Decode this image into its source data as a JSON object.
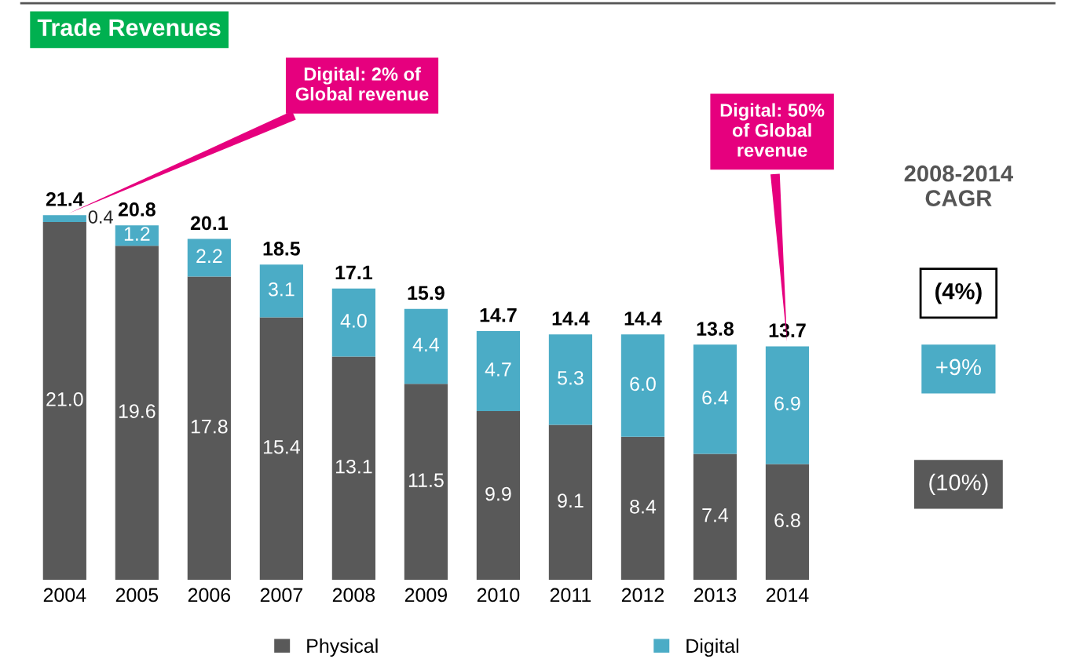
{
  "chart_data": {
    "type": "bar",
    "title": "Trade Revenues",
    "stacked": true,
    "legend": "bottom",
    "grid": false,
    "categories": [
      "2004",
      "2005",
      "2006",
      "2007",
      "2008",
      "2009",
      "2010",
      "2011",
      "2012",
      "2013",
      "2014"
    ],
    "series": [
      {
        "name": "Physical",
        "color": "#595959",
        "values": [
          21.0,
          19.6,
          17.8,
          15.4,
          13.1,
          11.5,
          9.9,
          9.1,
          8.4,
          7.4,
          6.8
        ],
        "value_labels": [
          "21.0",
          "19.6",
          "17.8",
          "15.4",
          "13.1",
          "11.5",
          "9.9",
          "9.1",
          "8.4",
          "7.4",
          "6.8"
        ]
      },
      {
        "name": "Digital",
        "color": "#4bacc6",
        "values": [
          0.4,
          1.2,
          2.2,
          3.1,
          4.0,
          4.4,
          4.7,
          5.3,
          6.0,
          6.4,
          6.9
        ],
        "value_labels": [
          "0.4",
          "1.2",
          "2.2",
          "3.1",
          "4.0",
          "4.4",
          "4.7",
          "5.3",
          "6.0",
          "6.4",
          "6.9"
        ]
      }
    ],
    "totals": [
      "21.4",
      "20.8",
      "20.1",
      "18.5",
      "17.1",
      "15.9",
      "14.7",
      "14.4",
      "14.4",
      "13.8",
      "13.7"
    ],
    "annotations": [
      {
        "text": "Digital: 2% of\nGlobal revenue",
        "x": "2004",
        "y": 21.4
      },
      {
        "text": "Digital: 50%\nof Global\nrevenue",
        "x": "2014",
        "y": 13.7
      },
      "2008-2014\nCAGR",
      "(4%)",
      "+9%",
      "(10%)"
    ]
  }
}
